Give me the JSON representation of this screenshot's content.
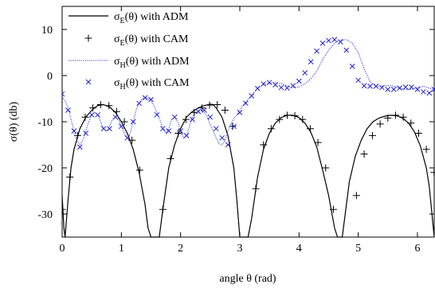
{
  "chart_data": {
    "type": "line",
    "title": "",
    "xlabel": "angle θ (rad)",
    "ylabel": "σ(θ) (db)",
    "xlim": [
      0,
      6.283
    ],
    "ylim": [
      -35,
      15
    ],
    "xticks": [
      0,
      1,
      2,
      3,
      4,
      5,
      6
    ],
    "yticks": [
      -30,
      -20,
      -10,
      0,
      10
    ],
    "xtick_labels": [
      "0",
      "1",
      "2",
      "3",
      "4",
      "5",
      "6"
    ],
    "ytick_labels": [
      "-30",
      "-20",
      "-10",
      "0",
      "10"
    ],
    "grid": false,
    "legend_position": "top-left",
    "legend": [
      {
        "sym": "σ",
        "sub": "E",
        "rest": "(θ) with ADM",
        "style": "line",
        "color": "#000000"
      },
      {
        "sym": "σ",
        "sub": "E",
        "rest": "(θ) with CAM",
        "style": "plus",
        "color": "#000000"
      },
      {
        "sym": "σ",
        "sub": "H",
        "rest": "(θ) with ADM",
        "style": "dotted",
        "color": "#3030e0"
      },
      {
        "sym": "σ",
        "sub": "H",
        "rest": "(θ) with CAM",
        "style": "cross",
        "color": "#2020d0"
      }
    ],
    "series": [
      {
        "name": "σE(θ) with ADM",
        "style": "line",
        "color": "#000000",
        "x": [
          0.0,
          0.03,
          0.05,
          0.1,
          0.15,
          0.2,
          0.3,
          0.4,
          0.5,
          0.6,
          0.7,
          0.8,
          0.9,
          1.0,
          1.1,
          1.2,
          1.3,
          1.4,
          1.45,
          1.5,
          1.54,
          1.57,
          1.6,
          1.64,
          1.7,
          1.8,
          1.9,
          2.0,
          2.1,
          2.2,
          2.3,
          2.4,
          2.5,
          2.55,
          2.6,
          2.7,
          2.8,
          2.9,
          2.95,
          3.0,
          3.05,
          3.09,
          3.14,
          3.2,
          3.3,
          3.4,
          3.5,
          3.6,
          3.7,
          3.8,
          3.9,
          4.0,
          4.1,
          4.2,
          4.3,
          4.4,
          4.5,
          4.6,
          4.65,
          4.69,
          4.73,
          4.78,
          4.85,
          4.95,
          5.05,
          5.15,
          5.25,
          5.35,
          5.45,
          5.55,
          5.65,
          5.75,
          5.85,
          5.95,
          6.05,
          6.15,
          6.2,
          6.283
        ],
        "y": [
          -26,
          -33,
          -35,
          -27,
          -20,
          -16,
          -11.5,
          -9,
          -7.5,
          -6.5,
          -6.3,
          -6.8,
          -8,
          -10,
          -12.5,
          -16,
          -21,
          -28,
          -33,
          -35,
          -35,
          -35,
          -35,
          -35,
          -29,
          -20,
          -15,
          -11.5,
          -9,
          -7.8,
          -7,
          -6.5,
          -6.2,
          -6.3,
          -7,
          -9,
          -13,
          -20,
          -27,
          -35,
          -35,
          -35,
          -35,
          -31,
          -22,
          -16,
          -12.5,
          -10.3,
          -9.1,
          -8.6,
          -8.6,
          -9.1,
          -10.3,
          -12.3,
          -15.5,
          -20.5,
          -26,
          -33,
          -35,
          -35,
          -35,
          -30,
          -23,
          -17.5,
          -14,
          -11.5,
          -10,
          -9.2,
          -8.8,
          -8.6,
          -8.7,
          -9.2,
          -10.3,
          -12.2,
          -15.3,
          -20,
          -24,
          -35
        ]
      },
      {
        "name": "σE(θ) with CAM",
        "style": "plus",
        "color": "#000000",
        "x": [
          0.0,
          0.13,
          0.26,
          0.39,
          0.52,
          0.65,
          0.79,
          0.92,
          1.05,
          1.18,
          1.31,
          1.7,
          1.83,
          1.96,
          2.09,
          2.23,
          2.36,
          2.49,
          2.62,
          2.75,
          2.88,
          3.27,
          3.4,
          3.53,
          3.67,
          3.8,
          3.93,
          4.06,
          4.19,
          4.32,
          4.45,
          4.58,
          4.97,
          5.1,
          5.24,
          5.37,
          5.5,
          5.63,
          5.76,
          5.89,
          6.02,
          6.15,
          6.28
        ],
        "y": [
          -29,
          -22,
          -13,
          -9,
          -7,
          -6.3,
          -6.5,
          -7.8,
          -10,
          -14,
          -20.5,
          -29,
          -18,
          -12.5,
          -9.5,
          -8,
          -7,
          -6.4,
          -6.3,
          -7.5,
          -11,
          -24.5,
          -15,
          -11.5,
          -9.5,
          -8.6,
          -8.7,
          -9.5,
          -11.5,
          -14.5,
          -20,
          -29,
          -26,
          -17,
          -13,
          -10.5,
          -9.2,
          -8.6,
          -9,
          -10.3,
          -12.5,
          -16,
          -21
        ]
      },
      {
        "name": "σH(θ) with ADM",
        "style": "dotted",
        "color": "#3030e0",
        "x": [
          0.0,
          0.05,
          0.1,
          0.15,
          0.2,
          0.25,
          0.3,
          0.35,
          0.4,
          0.45,
          0.5,
          0.55,
          0.6,
          0.65,
          0.7,
          0.75,
          0.8,
          0.85,
          0.9,
          0.95,
          1.0,
          1.05,
          1.1,
          1.15,
          1.2,
          1.25,
          1.3,
          1.35,
          1.4,
          1.45,
          1.5,
          1.55,
          1.6,
          1.65,
          1.7,
          1.75,
          1.8,
          1.85,
          1.9,
          1.95,
          2.0,
          2.05,
          2.1,
          2.15,
          2.2,
          2.25,
          2.3,
          2.35,
          2.4,
          2.45,
          2.5,
          2.55,
          2.6,
          2.65,
          2.7,
          2.75,
          2.8,
          2.85,
          2.9,
          2.95,
          3.0,
          3.05,
          3.1,
          3.15,
          3.2,
          3.25,
          3.3,
          3.4,
          3.5,
          3.6,
          3.7,
          3.8,
          3.9,
          4.0,
          4.1,
          4.2,
          4.3,
          4.4,
          4.5,
          4.6,
          4.7,
          4.8,
          4.9,
          5.0,
          5.1,
          5.2,
          5.3,
          5.4,
          5.5,
          5.6,
          5.7,
          5.8,
          5.9,
          6.0,
          6.1,
          6.2,
          6.283
        ],
        "y": [
          -4.5,
          -5.5,
          -7,
          -9.5,
          -12,
          -14,
          -15,
          -14,
          -12,
          -10,
          -8.5,
          -8,
          -8.5,
          -10,
          -11.5,
          -12,
          -11,
          -9.5,
          -9,
          -9.5,
          -11,
          -12.5,
          -13.5,
          -12.5,
          -10,
          -7.5,
          -6,
          -5,
          -4.7,
          -5,
          -5.5,
          -6.5,
          -8,
          -9.5,
          -11.5,
          -12.5,
          -11.5,
          -9.5,
          -9,
          -10,
          -12,
          -13.5,
          -13,
          -11,
          -9,
          -8,
          -7.5,
          -7.5,
          -8,
          -9,
          -10.5,
          -12,
          -13.5,
          -14.8,
          -15,
          -14,
          -12,
          -10.5,
          -9.3,
          -8.5,
          -7.5,
          -6.5,
          -5.8,
          -5,
          -4.3,
          -3.5,
          -2.7,
          -2,
          -1.7,
          -1.5,
          -1.7,
          -2.2,
          -2.6,
          -2.5,
          -1.8,
          -0.7,
          1,
          3.5,
          5.5,
          7,
          7.7,
          7.8,
          7,
          5,
          1.5,
          -1.3,
          -2.3,
          -2.3,
          -2.1,
          -2.3,
          -2.7,
          -3,
          -3,
          -2.6,
          -2.3,
          -2.7,
          -3.3
        ]
      },
      {
        "name": "σH(θ) with CAM",
        "style": "cross",
        "color": "#2020d0",
        "x": [
          0.0,
          0.1,
          0.2,
          0.3,
          0.4,
          0.5,
          0.6,
          0.7,
          0.8,
          0.9,
          1.0,
          1.1,
          1.2,
          1.3,
          1.4,
          1.5,
          1.6,
          1.7,
          1.8,
          1.9,
          2.0,
          2.1,
          2.2,
          2.3,
          2.4,
          2.5,
          2.6,
          2.7,
          2.8,
          2.9,
          3.0,
          3.1,
          3.2,
          3.3,
          3.4,
          3.5,
          3.6,
          3.7,
          3.8,
          3.9,
          4.0,
          4.1,
          4.2,
          4.3,
          4.4,
          4.5,
          4.6,
          4.7,
          4.8,
          4.9,
          5.0,
          5.1,
          5.2,
          5.3,
          5.4,
          5.5,
          5.6,
          5.7,
          5.8,
          5.9,
          6.0,
          6.1,
          6.2,
          6.283
        ],
        "y": [
          -4,
          -7.5,
          -12,
          -15.5,
          -12.5,
          -8.5,
          -8.5,
          -11.5,
          -11.5,
          -9,
          -11,
          -13.5,
          -10,
          -6,
          -4.8,
          -5.2,
          -8.5,
          -11.5,
          -12,
          -9,
          -12,
          -13,
          -9.5,
          -7.8,
          -7.5,
          -9,
          -11.5,
          -13.5,
          -15,
          -11,
          -8,
          -6,
          -4.4,
          -2.8,
          -1.8,
          -1.5,
          -2,
          -2.6,
          -2.7,
          -2.2,
          -1.2,
          0.6,
          3,
          5.3,
          7,
          7.6,
          7.8,
          7.3,
          5.5,
          2,
          -1,
          -2.2,
          -2.3,
          -2.3,
          -2.6,
          -3,
          -3,
          -2.7,
          -2.5,
          -2.5,
          -3,
          -3.5,
          -3.8,
          -3
        ]
      }
    ]
  }
}
